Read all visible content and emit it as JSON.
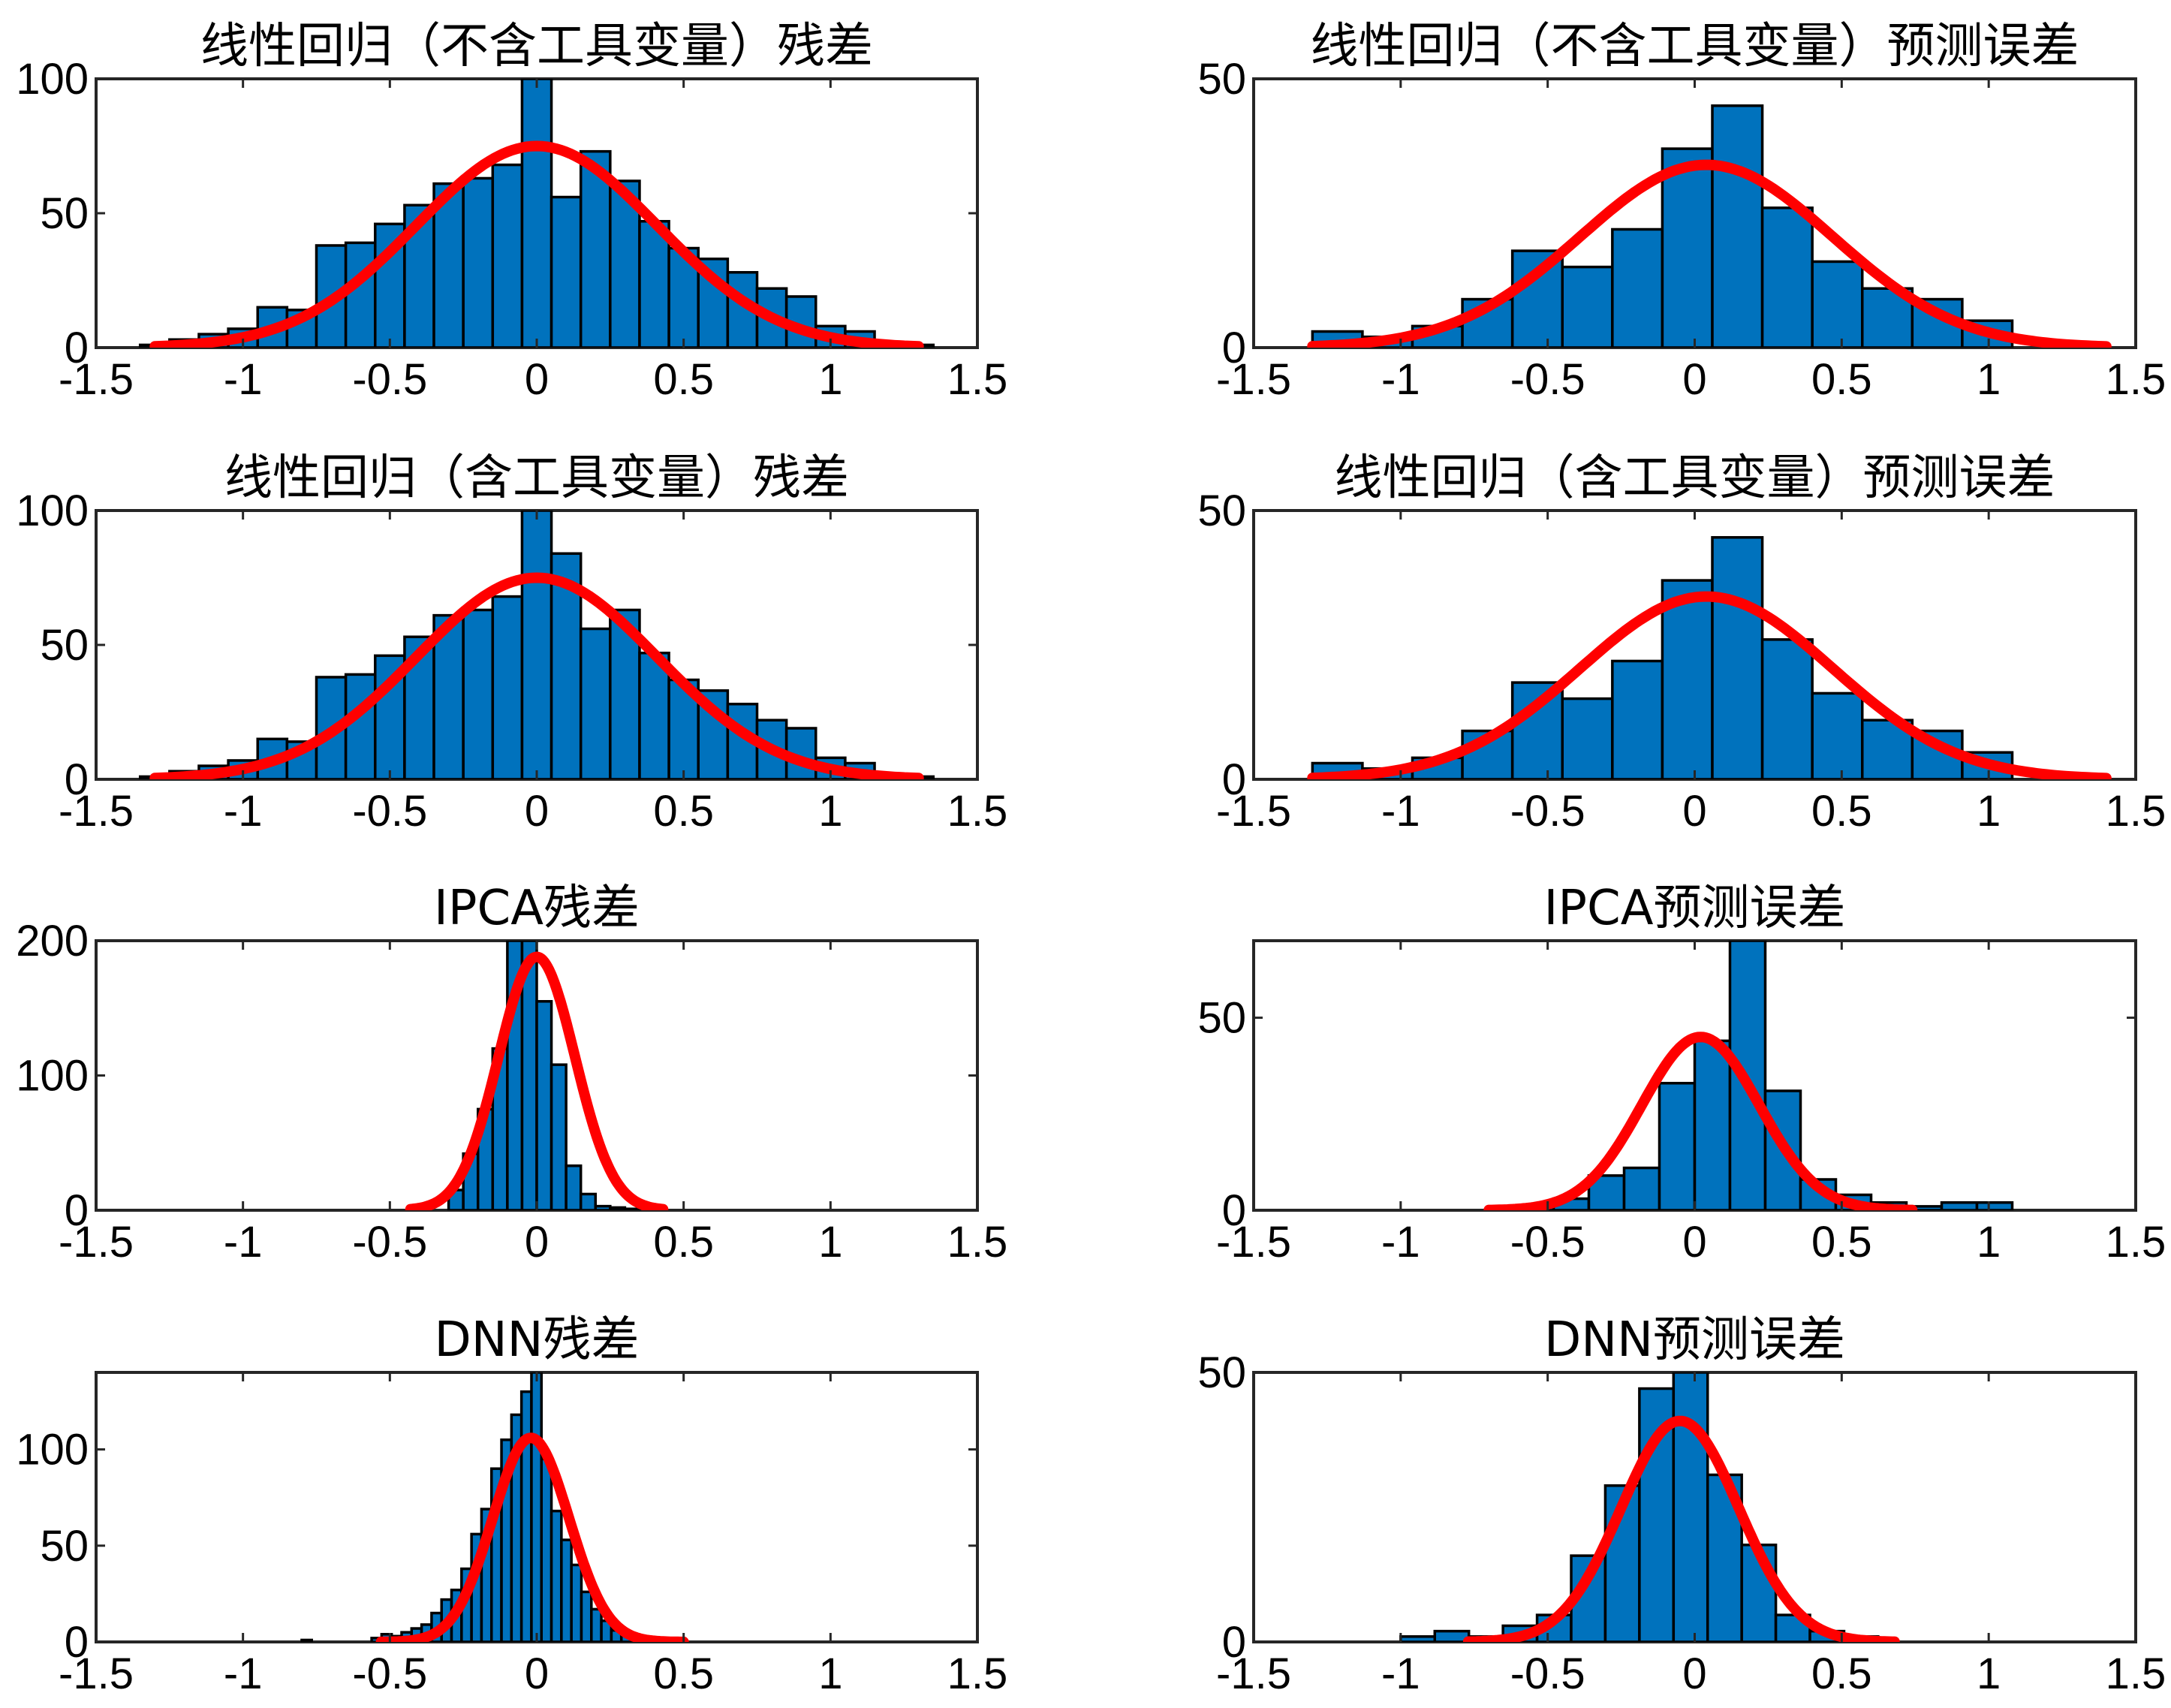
{
  "colors": {
    "bar": "#0072BD",
    "fit": "#FF0000"
  },
  "chart_data": [
    {
      "type": "histogram",
      "title": "线性回归（不含工具变量）残差",
      "xlim": [
        -1.5,
        1.5
      ],
      "ylim": [
        0,
        100
      ],
      "xticks": [
        -1.5,
        -1,
        -0.5,
        0,
        0.5,
        1,
        1.5
      ],
      "xtick_labels": [
        "-1.5",
        "-1",
        "-0.5",
        "0",
        "0.5",
        "1",
        "1.5"
      ],
      "yticks": [
        0,
        50,
        100
      ],
      "ytick_labels": [
        "0",
        "50",
        "100"
      ],
      "bins": {
        "start": -1.35,
        "width": 0.1,
        "counts": [
          1,
          3,
          5,
          7,
          15,
          14,
          38,
          39,
          46,
          53,
          61,
          63,
          68,
          101,
          56,
          73,
          62,
          47,
          37,
          33,
          28,
          22,
          19,
          8,
          6,
          2,
          1
        ]
      },
      "fit": {
        "distribution": "normal",
        "mu": 0,
        "sigma": 0.41,
        "peak": 75,
        "xrange": [
          -1.3,
          1.3
        ]
      }
    },
    {
      "type": "histogram",
      "title": "线性回归（不含工具变量）预测误差",
      "xlim": [
        -1.5,
        1.5
      ],
      "ylim": [
        0,
        50
      ],
      "xticks": [
        -1.5,
        -1,
        -0.5,
        0,
        0.5,
        1,
        1.5
      ],
      "xtick_labels": [
        "-1.5",
        "-1",
        "-0.5",
        "0",
        "0.5",
        "1",
        "1.5"
      ],
      "yticks": [
        0,
        50
      ],
      "ytick_labels": [
        "0",
        "50"
      ],
      "bins": {
        "start": -1.3,
        "width": 0.17,
        "counts": [
          3,
          2,
          4,
          9,
          18,
          15,
          22,
          37,
          45,
          26,
          16,
          11,
          9,
          5
        ]
      },
      "fit": {
        "distribution": "normal",
        "mu": 0.04,
        "sigma": 0.43,
        "peak": 34,
        "xrange": [
          -1.3,
          1.4
        ]
      }
    },
    {
      "type": "histogram",
      "title": "线性回归（含工具变量）残差",
      "xlim": [
        -1.5,
        1.5
      ],
      "ylim": [
        0,
        100
      ],
      "xticks": [
        -1.5,
        -1,
        -0.5,
        0,
        0.5,
        1,
        1.5
      ],
      "xtick_labels": [
        "-1.5",
        "-1",
        "-0.5",
        "0",
        "0.5",
        "1",
        "1.5"
      ],
      "yticks": [
        0,
        50,
        100
      ],
      "ytick_labels": [
        "0",
        "50",
        "100"
      ],
      "bins": {
        "start": -1.35,
        "width": 0.1,
        "counts": [
          1,
          3,
          5,
          7,
          15,
          14,
          38,
          39,
          46,
          53,
          61,
          63,
          68,
          101,
          84,
          56,
          63,
          47,
          37,
          33,
          28,
          22,
          19,
          8,
          6,
          2,
          1
        ]
      },
      "fit": {
        "distribution": "normal",
        "mu": 0,
        "sigma": 0.41,
        "peak": 75,
        "xrange": [
          -1.3,
          1.3
        ]
      }
    },
    {
      "type": "histogram",
      "title": "线性回归（含工具变量）预测误差",
      "xlim": [
        -1.5,
        1.5
      ],
      "ylim": [
        0,
        50
      ],
      "xticks": [
        -1.5,
        -1,
        -0.5,
        0,
        0.5,
        1,
        1.5
      ],
      "xtick_labels": [
        "-1.5",
        "-1",
        "-0.5",
        "0",
        "0.5",
        "1",
        "1.5"
      ],
      "yticks": [
        0,
        50
      ],
      "ytick_labels": [
        "0",
        "50"
      ],
      "bins": {
        "start": -1.3,
        "width": 0.17,
        "counts": [
          3,
          2,
          4,
          9,
          18,
          15,
          22,
          37,
          45,
          26,
          16,
          11,
          9,
          5
        ]
      },
      "fit": {
        "distribution": "normal",
        "mu": 0.04,
        "sigma": 0.43,
        "peak": 34,
        "xrange": [
          -1.3,
          1.4
        ]
      }
    },
    {
      "type": "histogram",
      "title": "IPCA残差",
      "xlim": [
        -1.5,
        1.5
      ],
      "ylim": [
        0,
        200
      ],
      "xticks": [
        -1.5,
        -1,
        -0.5,
        0,
        0.5,
        1,
        1.5
      ],
      "xtick_labels": [
        "-1.5",
        "-1",
        "-0.5",
        "0",
        "0.5",
        "1",
        "1.5"
      ],
      "yticks": [
        0,
        100,
        200
      ],
      "ytick_labels": [
        "0",
        "100",
        "200"
      ],
      "bins": {
        "start": -0.3,
        "width": 0.05,
        "counts": [
          15,
          42,
          75,
          120,
          200,
          210,
          155,
          108,
          33,
          12,
          3,
          2,
          1
        ]
      },
      "fit": {
        "distribution": "normal",
        "mu": 0,
        "sigma": 0.13,
        "peak": 188,
        "xrange": [
          -0.43,
          0.43
        ]
      }
    },
    {
      "type": "histogram",
      "title": "IPCA预测误差",
      "xlim": [
        -1.5,
        1.5
      ],
      "ylim": [
        0,
        70
      ],
      "xticks": [
        -1.5,
        -1,
        -0.5,
        0,
        0.5,
        1,
        1.5
      ],
      "xtick_labels": [
        "-1.5",
        "-1",
        "-0.5",
        "0",
        "0.5",
        "1",
        "1.5"
      ],
      "yticks": [
        0,
        50
      ],
      "ytick_labels": [
        "0",
        "50"
      ],
      "bins": {
        "start": -0.6,
        "width": 0.12,
        "counts": [
          1,
          3,
          9,
          11,
          33,
          44,
          72,
          31,
          8,
          4,
          2,
          1,
          2,
          2
        ]
      },
      "fit": {
        "distribution": "normal",
        "mu": 0.02,
        "sigma": 0.2,
        "peak": 45,
        "xrange": [
          -0.7,
          0.74
        ]
      }
    },
    {
      "type": "histogram",
      "title": "DNN残差",
      "xlim": [
        -1.5,
        1.5
      ],
      "ylim": [
        0,
        140
      ],
      "xticks": [
        -1.5,
        -1,
        -0.5,
        0,
        0.5,
        1,
        1.5
      ],
      "xtick_labels": [
        "-1.5",
        "-1",
        "-0.5",
        "0",
        "0.5",
        "1",
        "1.5"
      ],
      "yticks": [
        0,
        50,
        100
      ],
      "ytick_labels": [
        "0",
        "50",
        "100"
      ],
      "bins": {
        "start": -0.8,
        "width": 0.034,
        "counts": [
          1,
          0,
          0,
          0,
          0,
          0,
          0,
          2,
          4,
          3,
          5,
          7,
          9,
          15,
          22,
          27,
          38,
          56,
          69,
          90,
          105,
          118,
          130,
          142,
          95,
          68,
          53,
          40,
          26,
          17,
          11,
          6,
          4,
          3,
          0,
          2,
          1
        ]
      },
      "fit": {
        "distribution": "normal",
        "mu": -0.02,
        "sigma": 0.13,
        "peak": 106,
        "xrange": [
          -0.53,
          0.5
        ]
      }
    },
    {
      "type": "histogram",
      "title": "DNN预测误差",
      "xlim": [
        -1.5,
        1.5
      ],
      "ylim": [
        0,
        50
      ],
      "xticks": [
        -1.5,
        -1,
        -0.5,
        0,
        0.5,
        1,
        1.5
      ],
      "xtick_labels": [
        "-1.5",
        "-1",
        "-0.5",
        "0",
        "0.5",
        "1",
        "1.5"
      ],
      "yticks": [
        0,
        50
      ],
      "ytick_labels": [
        "0",
        "50"
      ],
      "bins": {
        "start": -1.0,
        "width": 0.116,
        "counts": [
          1,
          2,
          1,
          3,
          5,
          16,
          29,
          47,
          52,
          31,
          18,
          5,
          2,
          1
        ]
      },
      "fit": {
        "distribution": "normal",
        "mu": -0.05,
        "sigma": 0.2,
        "peak": 41,
        "xrange": [
          -0.77,
          0.68
        ]
      }
    }
  ]
}
